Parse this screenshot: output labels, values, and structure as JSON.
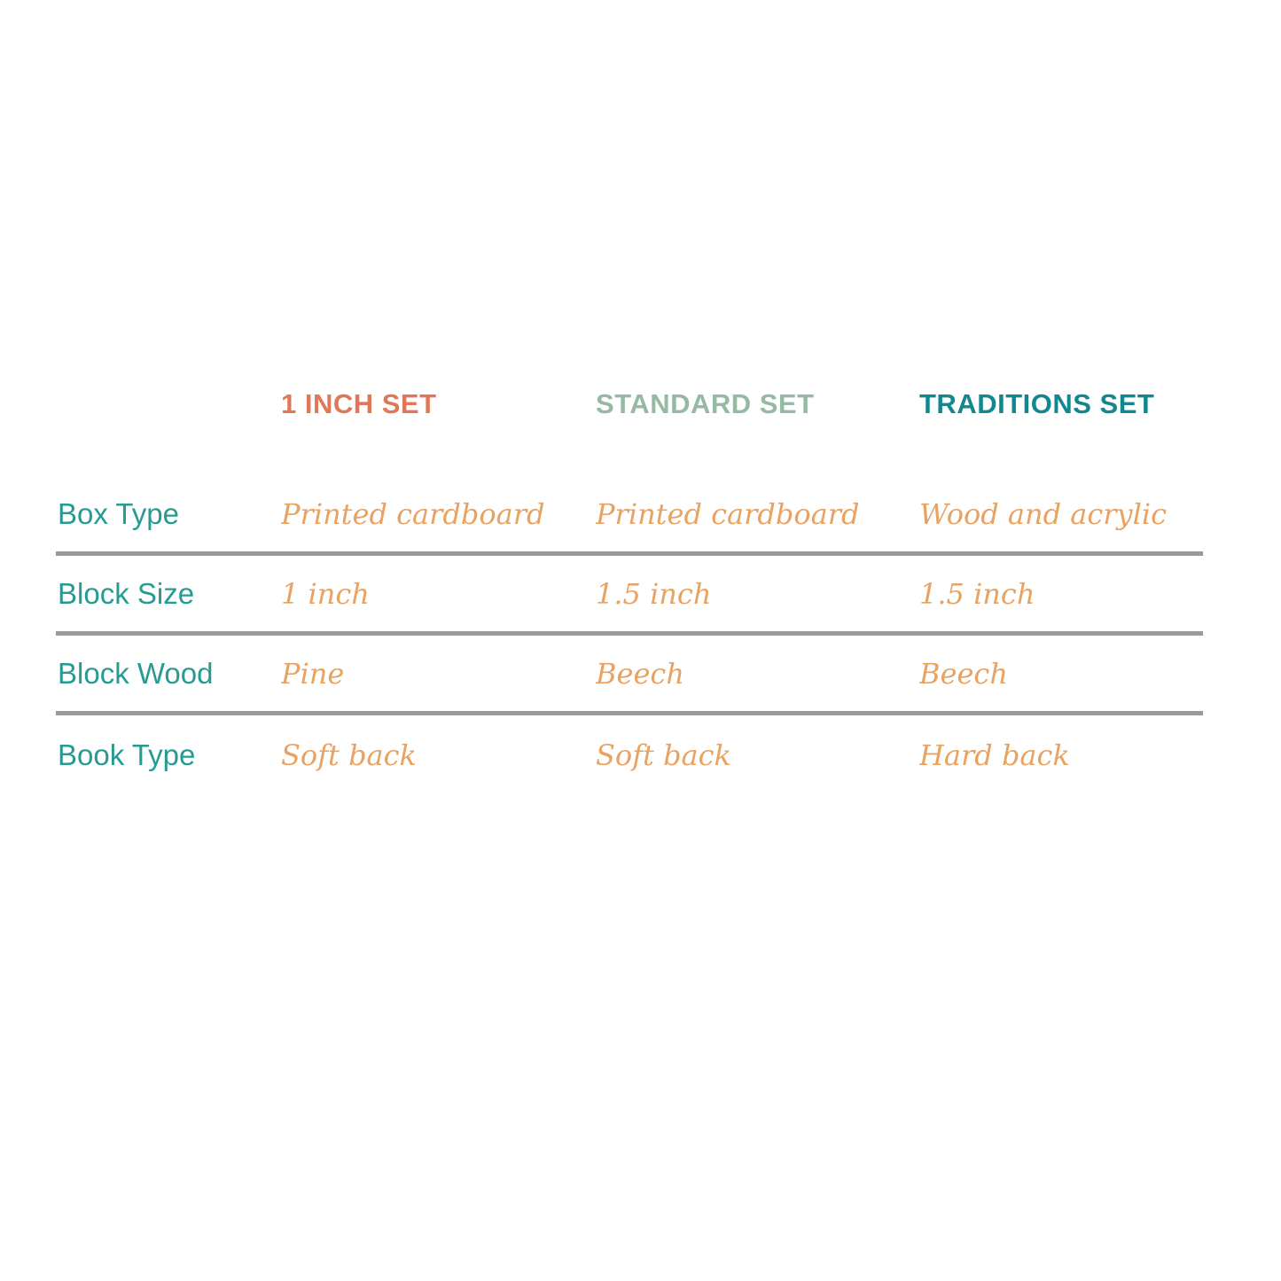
{
  "table": {
    "columns": [
      {
        "label": "1 INCH SET",
        "color": "#e07858"
      },
      {
        "label": "STANDARD SET",
        "color": "#95b9a3"
      },
      {
        "label": "TRADITIONS SET",
        "color": "#13878e"
      }
    ],
    "rows": [
      {
        "label": "Box Type",
        "values": [
          "Printed cardboard",
          "Printed cardboard",
          "Wood and acrylic"
        ]
      },
      {
        "label": "Block Size",
        "values": [
          "1 inch",
          "1.5 inch",
          "1.5 inch"
        ]
      },
      {
        "label": "Block Wood",
        "values": [
          "Pine",
          "Beech",
          "Beech"
        ]
      },
      {
        "label": "Book Type",
        "values": [
          "Soft back",
          "Soft back",
          "Hard back"
        ]
      }
    ],
    "colors": {
      "row_label": "#279a92",
      "value_text": "#e8a262",
      "divider": "#9a9a9a",
      "background": "#ffffff"
    }
  }
}
